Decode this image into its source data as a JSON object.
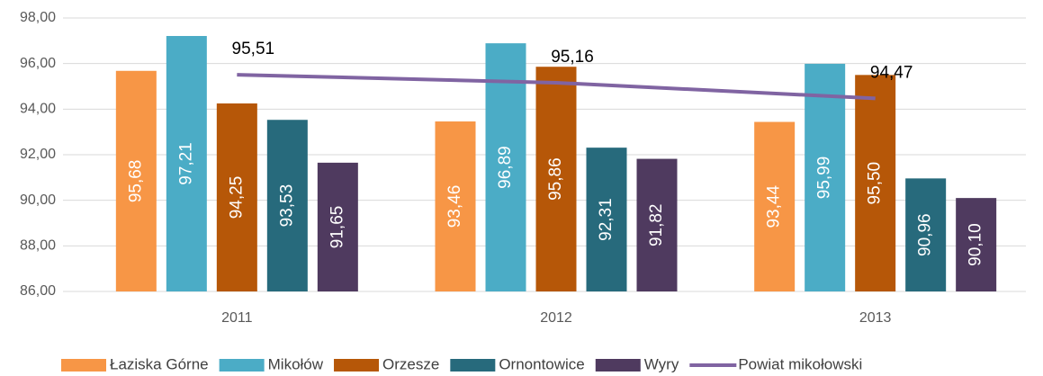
{
  "chart_data": {
    "type": "bar",
    "categories": [
      "2011",
      "2012",
      "2013"
    ],
    "series": [
      {
        "name": "Łaziska Górne",
        "color": "#f79646",
        "values": [
          95.68,
          93.46,
          93.44
        ],
        "value_labels": [
          "95,68",
          "93,46",
          "93,44"
        ]
      },
      {
        "name": "Mikołów",
        "color": "#4bacc6",
        "values": [
          97.21,
          96.89,
          95.99
        ],
        "value_labels": [
          "97,21",
          "96,89",
          "95,99"
        ]
      },
      {
        "name": "Orzesze",
        "color": "#b65708",
        "values": [
          94.25,
          95.86,
          95.5
        ],
        "value_labels": [
          "94,25",
          "95,86",
          "95,50"
        ]
      },
      {
        "name": "Ornontowice",
        "color": "#276a7c",
        "values": [
          93.53,
          92.31,
          90.96
        ],
        "value_labels": [
          "93,53",
          "92,31",
          "90,96"
        ]
      },
      {
        "name": "Wyry",
        "color": "#4f3a5f",
        "values": [
          91.65,
          91.82,
          90.1
        ],
        "value_labels": [
          "91,65",
          "91,82",
          "90,10"
        ]
      },
      {
        "name": "Powiat mikołowski",
        "type": "line",
        "color": "#8064a2",
        "values": [
          95.51,
          95.16,
          94.47
        ],
        "value_labels": [
          "95,51",
          "95,16",
          "94,47"
        ]
      }
    ],
    "ylim": [
      86,
      98
    ],
    "yticks": [
      {
        "value": 86,
        "label": "86,00"
      },
      {
        "value": 88,
        "label": "88,00"
      },
      {
        "value": 90,
        "label": "90,00"
      },
      {
        "value": 92,
        "label": "92,00"
      },
      {
        "value": 94,
        "label": "94,00"
      },
      {
        "value": 96,
        "label": "96,00"
      },
      {
        "value": 98,
        "label": "98,00"
      }
    ],
    "grid": true,
    "legend": "bottom"
  }
}
